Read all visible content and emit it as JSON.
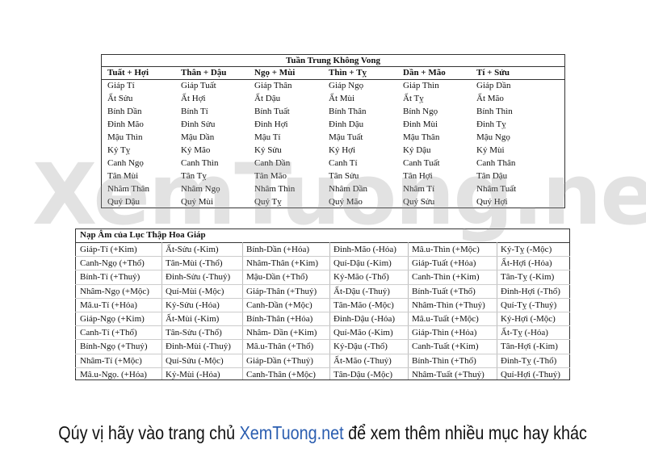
{
  "table1": {
    "title": "Tuần Trung Không Vong",
    "headers": [
      "Tuất + Hợi",
      "Thân + Dậu",
      "Ngọ + Mùi",
      "Thìn + Tỵ",
      "Dần + Mão",
      "Tí + Sửu"
    ],
    "rows": [
      [
        "Giáp Tí",
        "Giáp Tuất",
        "Giáp Thân",
        "Giáp Ngọ",
        "Giáp Thìn",
        "Giáp Dần"
      ],
      [
        "Ất Sửu",
        "Ất Hợi",
        "Ất Dậu",
        "Ất Mùi",
        "Ất Tỵ",
        "Ất Mão"
      ],
      [
        "Bính Dần",
        "Bính Tí",
        "Bính Tuất",
        "Bính Thân",
        "Bính Ngọ",
        "Bính Thìn"
      ],
      [
        "Đinh Mão",
        "Đinh Sửu",
        "Đinh Hợi",
        "Đinh Dậu",
        "Đinh Mùi",
        "Đinh Tỵ"
      ],
      [
        "Mậu Thìn",
        "Mậu Dần",
        "Mậu Tí",
        "Mậu Tuất",
        "Mậu Thân",
        "Mậu Ngọ"
      ],
      [
        "Kỷ Tỵ",
        "Kỷ Mão",
        "Kỷ Sửu",
        "Kỷ Hợi",
        "Kỷ Dậu",
        "Kỷ Mùi"
      ],
      [
        "Canh Ngọ",
        "Canh Thìn",
        "Canh Dần",
        "Canh Tí",
        "Canh Tuất",
        "Canh Thân"
      ],
      [
        "Tân Mùi",
        "Tân Tỵ",
        "Tân Mão",
        "Tân Sửu",
        "Tân Hợi",
        "Tân Dậu"
      ],
      [
        "Nhâm Thân",
        "Nhâm Ngọ",
        "Nhâm Thìn",
        "Nhâm Dần",
        "Nhâm Tí",
        "Nhâm Tuất"
      ],
      [
        "Quý Dậu",
        "Quý Mùi",
        "Quý Tỵ",
        "Quý Mão",
        "Quý Sửu",
        "Quý Hợi"
      ]
    ]
  },
  "table2": {
    "title": "Nạp Âm của Lục Thập Hoa Giáp",
    "rows": [
      [
        "Giáp-Tí (+Kim)",
        "Ất-Sửu (-Kim)",
        "Bính-Dần (+Hỏa)",
        "Đinh-Mão (-Hỏa)",
        "Mâ.u-Thìn (+Mộc)",
        "Kỷ-Tỵ (-Mộc)"
      ],
      [
        "Canh-Ngọ (+Thổ)",
        "Tân-Mùi (-Thổ)",
        "Nhâm-Thân (+Kim)",
        "Quí-Dậu (-Kim)",
        "Giáp-Tuất (+Hỏa)",
        "Ất-Hợi (-Hỏa)"
      ],
      [
        "Bính-Tí (+Thuỷ)",
        "Đinh-Sửu (-Thuỷ)",
        "Mậu-Dần (+Thổ)",
        "Kỷ-Mão (-Thổ)",
        "Canh-Thìn (+Kim)",
        "Tân-Tỵ (-Kim)"
      ],
      [
        "Nhâm-Ngọ (+Mộc)",
        "Quí-Mùi (-Mộc)",
        "Giáp-Thân (+Thuỷ)",
        "Ất-Dậu (-Thuỷ)",
        "Bính-Tuất (+Thổ)",
        "Đinh-Hợi (-Thổ)"
      ],
      [
        "Mâ.u-Tí (+Hỏa)",
        "Kỷ-Sửu (-Hỏa)",
        "Canh-Dần (+Mộc)",
        "Tân-Mão (-Mộc)",
        "Nhâm-Thìn (+Thuỷ)",
        "Quí-Tỵ (-Thuỷ)"
      ],
      [
        "Giáp-Ngọ (+Kim)",
        "Ất-Mùi (-Kim)",
        "Bính-Thân (+Hỏa)",
        "Đinh-Dậu (-Hỏa)",
        "Mâ.u-Tuất (+Mộc)",
        "Kỷ-Hợi (-Mộc)"
      ],
      [
        "Canh-Tí (+Thổ)",
        "Tân-Sửu (-Thổ)",
        "Nhâm- Dần (+Kim)",
        "Quí-Mão (-Kim)",
        "Giáp-Thìn (+Hỏa)",
        "Ất-Tỵ (-Hỏa)"
      ],
      [
        "Bính-Ngọ (+Thuỷ)",
        "Đinh-Mùi (-Thuỷ)",
        "Mâ.u-Thân (+Thổ)",
        "Kỷ-Dậu (-Thổ)",
        "Canh-Tuất (+Kim)",
        "Tân-Hợi (-Kim)"
      ],
      [
        "Nhâm-Tí (+Mộc)",
        "Quí-Sửu (-Mộc)",
        "Giáp-Dần (+Thuỷ)",
        "Ất-Mão (-Thuỷ)",
        "Bính-Thìn (+Thổ)",
        "Đinh-Tỵ (-Thổ)"
      ],
      [
        "Mâ.u-Ngọ. (+Hỏa)",
        "Kỷ-Mùi (-Hỏa)",
        "Canh-Thân (+Mộc)",
        "Tân-Dậu (-Mộc)",
        "Nhâm-Tuất (+Thuỷ)",
        "Quí-Hợi (-Thuỷ)"
      ]
    ]
  },
  "watermark": "XemTuong.net",
  "footer": {
    "before": "Qúy vị hãy vào trang chủ ",
    "link": "XemTuong.net",
    "after": " để xem thêm nhiều mục hay khác"
  }
}
